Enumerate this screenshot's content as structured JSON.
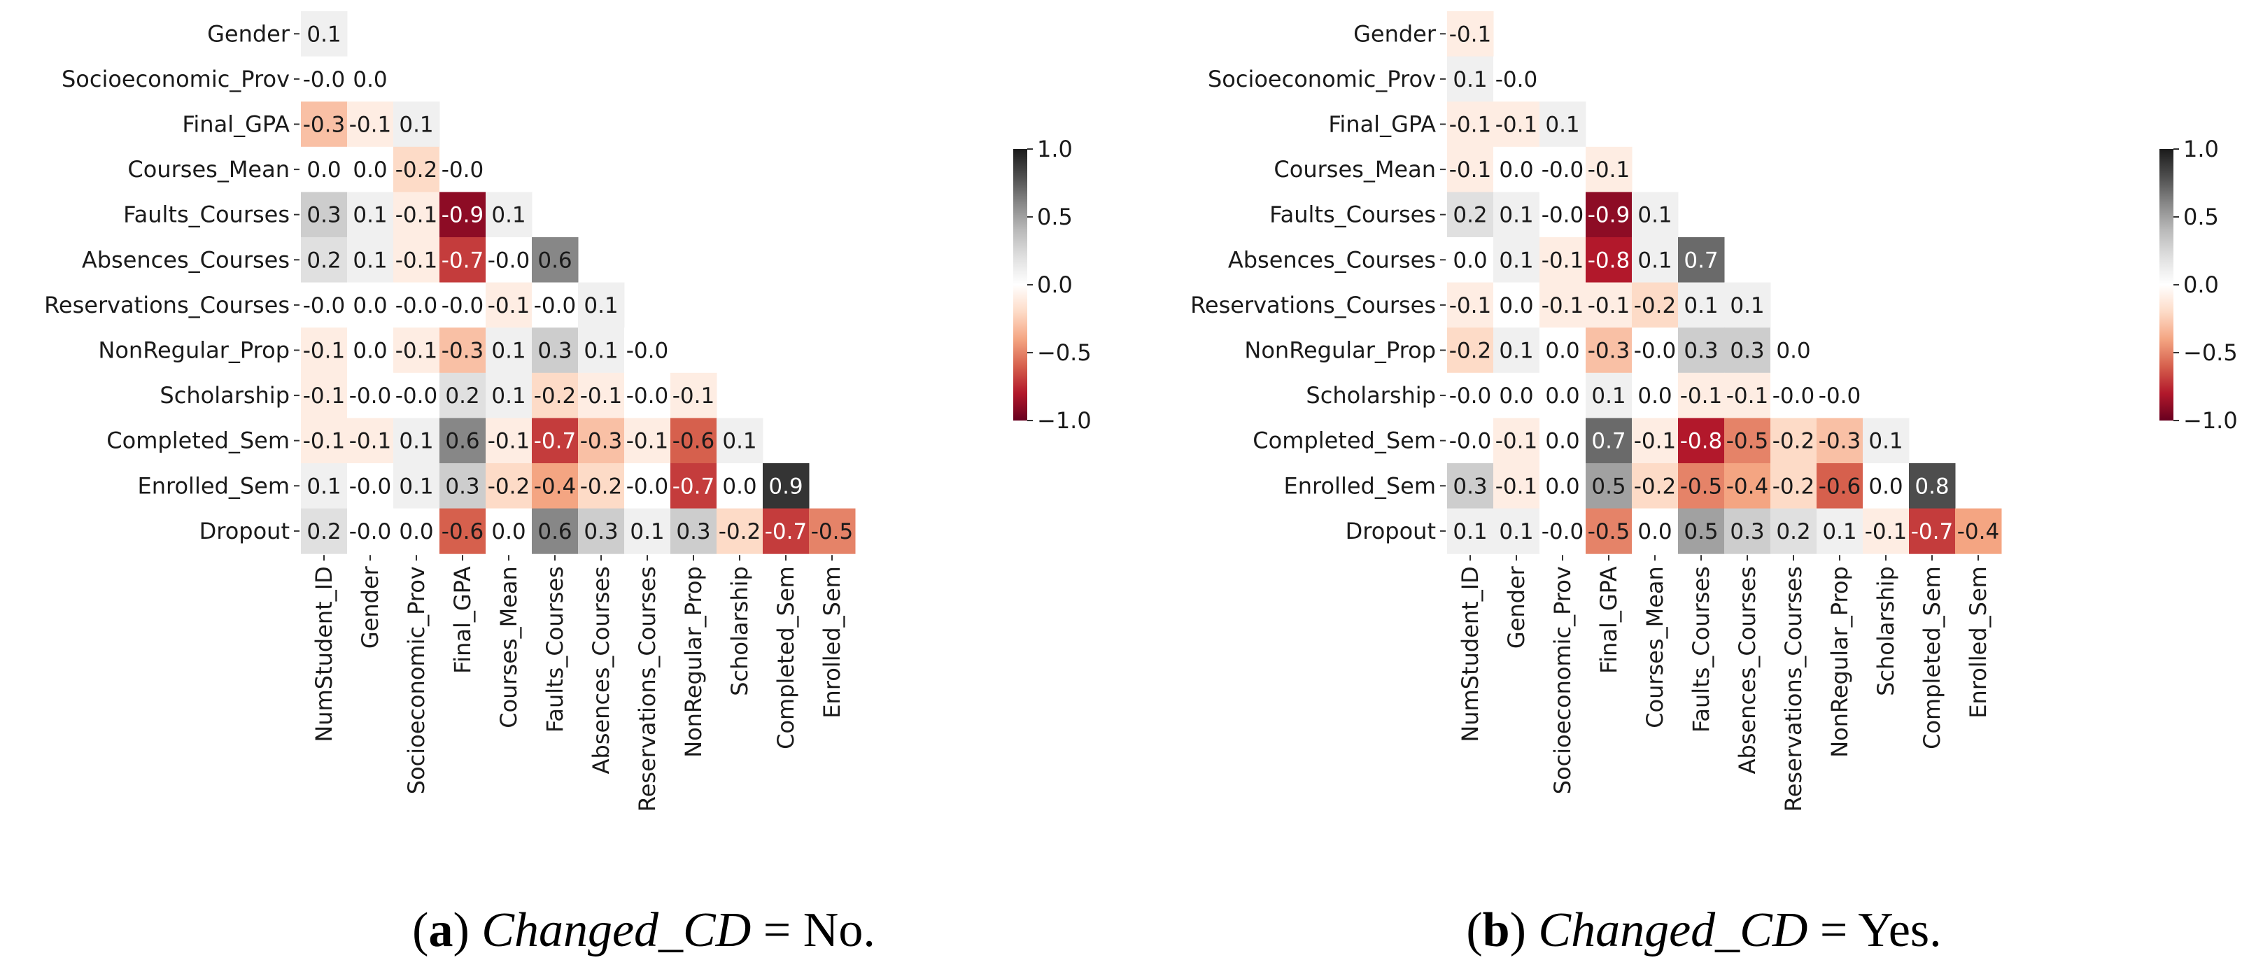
{
  "chart_data": [
    {
      "type": "heatmap",
      "subplot": "a",
      "caption": {
        "label": "a",
        "variable": "Changed_CD",
        "equals": " = No."
      },
      "row_labels": [
        "Gender",
        "Socioeconomic_Prov",
        "Final_GPA",
        "Courses_Mean",
        "Faults_Courses",
        "Absences_Courses",
        "Reservations_Courses",
        "NonRegular_Prop",
        "Scholarship",
        "Completed_Sem",
        "Enrolled_Sem",
        "Dropout"
      ],
      "col_labels": [
        "NumStudent_ID",
        "Gender",
        "Socioeconomic_Prov",
        "Final_GPA",
        "Courses_Mean",
        "Faults_Courses",
        "Absences_Courses",
        "Reservations_Courses",
        "NonRegular_Prop",
        "Scholarship",
        "Completed_Sem",
        "Enrolled_Sem"
      ],
      "display_values": [
        [
          "0.1"
        ],
        [
          "-0.0",
          "0.0"
        ],
        [
          "-0.3",
          "-0.1",
          "0.1"
        ],
        [
          "0.0",
          "0.0",
          "-0.2",
          "-0.0"
        ],
        [
          "0.3",
          "0.1",
          "-0.1",
          "-0.9",
          "0.1"
        ],
        [
          "0.2",
          "0.1",
          "-0.1",
          "-0.7",
          "-0.0",
          "0.6"
        ],
        [
          "-0.0",
          "0.0",
          "-0.0",
          "-0.0",
          "-0.1",
          "-0.0",
          "0.1"
        ],
        [
          "-0.1",
          "0.0",
          "-0.1",
          "-0.3",
          "0.1",
          "0.3",
          "0.1",
          "-0.0"
        ],
        [
          "-0.1",
          "-0.0",
          "-0.0",
          "0.2",
          "0.1",
          "-0.2",
          "-0.1",
          "-0.0",
          "-0.1"
        ],
        [
          "-0.1",
          "-0.1",
          "0.1",
          "0.6",
          "-0.1",
          "-0.7",
          "-0.3",
          "-0.1",
          "-0.6",
          "0.1"
        ],
        [
          "0.1",
          "-0.0",
          "0.1",
          "0.3",
          "-0.2",
          "-0.4",
          "-0.2",
          "-0.0",
          "-0.7",
          "0.0",
          "0.9"
        ],
        [
          "0.2",
          "-0.0",
          "0.0",
          "-0.6",
          "0.0",
          "0.6",
          "0.3",
          "0.1",
          "0.3",
          "-0.2",
          "-0.7",
          "-0.5"
        ]
      ],
      "colorbar": {
        "min": -1.0,
        "max": 1.0,
        "ticks": [
          "1.0",
          "0.5",
          "0.0",
          "−0.5",
          "−1.0"
        ],
        "tick_values": [
          1.0,
          0.5,
          0.0,
          -0.5,
          -1.0
        ]
      },
      "cmap": "RdGy"
    },
    {
      "type": "heatmap",
      "subplot": "b",
      "caption": {
        "label": "b",
        "variable": "Changed_CD",
        "equals": " = Yes."
      },
      "row_labels": [
        "Gender",
        "Socioeconomic_Prov",
        "Final_GPA",
        "Courses_Mean",
        "Faults_Courses",
        "Absences_Courses",
        "Reservations_Courses",
        "NonRegular_Prop",
        "Scholarship",
        "Completed_Sem",
        "Enrolled_Sem",
        "Dropout"
      ],
      "col_labels": [
        "NumStudent_ID",
        "Gender",
        "Socioeconomic_Prov",
        "Final_GPA",
        "Courses_Mean",
        "Faults_Courses",
        "Absences_Courses",
        "Reservations_Courses",
        "NonRegular_Prop",
        "Scholarship",
        "Completed_Sem",
        "Enrolled_Sem"
      ],
      "display_values": [
        [
          "-0.1"
        ],
        [
          "0.1",
          "-0.0"
        ],
        [
          "-0.1",
          "-0.1",
          "0.1"
        ],
        [
          "-0.1",
          "0.0",
          "-0.0",
          "-0.1"
        ],
        [
          "0.2",
          "0.1",
          "-0.0",
          "-0.9",
          "0.1"
        ],
        [
          "0.0",
          "0.1",
          "-0.1",
          "-0.8",
          "0.1",
          "0.7"
        ],
        [
          "-0.1",
          "0.0",
          "-0.1",
          "-0.1",
          "-0.2",
          "0.1",
          "0.1"
        ],
        [
          "-0.2",
          "0.1",
          "0.0",
          "-0.3",
          "-0.0",
          "0.3",
          "0.3",
          "0.0"
        ],
        [
          "-0.0",
          "0.0",
          "0.0",
          "0.1",
          "0.0",
          "-0.1",
          "-0.1",
          "-0.0",
          "-0.0"
        ],
        [
          "-0.0",
          "-0.1",
          "0.0",
          "0.7",
          "-0.1",
          "-0.8",
          "-0.5",
          "-0.2",
          "-0.3",
          "0.1"
        ],
        [
          "0.3",
          "-0.1",
          "0.0",
          "0.5",
          "-0.2",
          "-0.5",
          "-0.4",
          "-0.2",
          "-0.6",
          "0.0",
          "0.8"
        ],
        [
          "0.1",
          "0.1",
          "-0.0",
          "-0.5",
          "0.0",
          "0.5",
          "0.3",
          "0.2",
          "0.1",
          "-0.1",
          "-0.7",
          "-0.4"
        ]
      ],
      "colorbar": {
        "min": -1.0,
        "max": 1.0,
        "ticks": [
          "1.0",
          "0.5",
          "0.0",
          "−0.5",
          "−1.0"
        ],
        "tick_values": [
          1.0,
          0.5,
          0.0,
          -0.5,
          -1.0
        ]
      },
      "cmap": "RdGy"
    }
  ]
}
